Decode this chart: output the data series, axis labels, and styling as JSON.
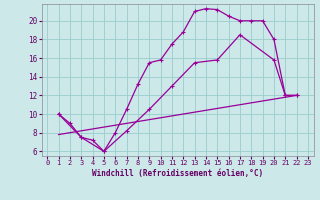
{
  "background_color": "#cce8e8",
  "grid_color": "#99cccc",
  "line_color": "#990099",
  "xlabel": "Windchill (Refroidissement éolien,°C)",
  "xlabel_color": "#660066",
  "tick_color": "#660066",
  "xlim": [
    -0.5,
    23.5
  ],
  "ylim": [
    5.5,
    21.8
  ],
  "yticks": [
    6,
    8,
    10,
    12,
    14,
    16,
    18,
    20
  ],
  "xticks": [
    0,
    1,
    2,
    3,
    4,
    5,
    6,
    7,
    8,
    9,
    10,
    11,
    12,
    13,
    14,
    15,
    16,
    17,
    18,
    19,
    20,
    21,
    22,
    23
  ],
  "line1_x": [
    1,
    2,
    3,
    4,
    5,
    6,
    7,
    8,
    9,
    10,
    11,
    12,
    13,
    14,
    15,
    16,
    17,
    18,
    19,
    20,
    21,
    22
  ],
  "line1_y": [
    10,
    9,
    7.5,
    7.2,
    6.0,
    8.0,
    10.5,
    13.2,
    15.5,
    15.8,
    17.5,
    18.8,
    21.0,
    21.3,
    21.2,
    20.5,
    20.0,
    20.0,
    20.0,
    18.0,
    12.0,
    12.0
  ],
  "line2_x": [
    1,
    3,
    5,
    7,
    9,
    11,
    13,
    15,
    17,
    20,
    21,
    22
  ],
  "line2_y": [
    10.0,
    7.5,
    6.0,
    8.2,
    10.5,
    13.0,
    15.5,
    15.8,
    18.5,
    15.8,
    12.0,
    12.0
  ],
  "line3_x": [
    1,
    22
  ],
  "line3_y": [
    7.8,
    12.0
  ]
}
